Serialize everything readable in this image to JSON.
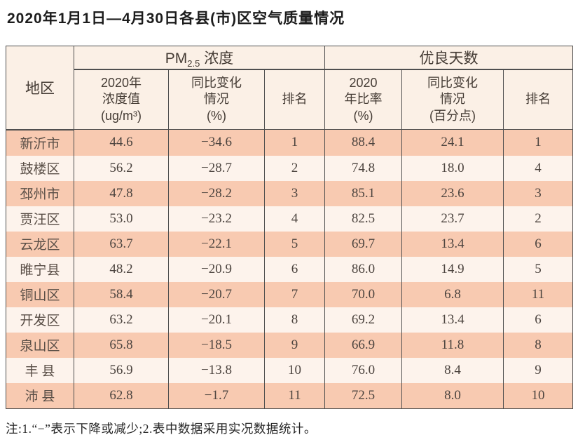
{
  "title": "2020年1月1日—4月30日各县(市)区空气质量情况",
  "note": "注:1.“−”表示下降或减少;2.表中数据采用实况数据统计。",
  "colors": {
    "row_salmon": "#f8cab1",
    "row_light": "#fdf3ec",
    "header_bg": "#fbf0e6",
    "border": "#4f4f4f",
    "title_text": "#1c1c1c",
    "cell_text": "#4c443f"
  },
  "chart_data": {
    "type": "table",
    "title": "2020年1月1日—4月30日各县(市)区空气质量情况",
    "column_groups": [
      {
        "name": "pm25",
        "label_prefix": "PM",
        "label_sub": "2.5",
        "label_suffix": " 浓度",
        "span": 3
      },
      {
        "name": "good_days",
        "label": "优良天数",
        "span": 3
      }
    ],
    "headers": {
      "region": "地区",
      "pm25_value": "2020年\n浓度值\n(ug/m³)",
      "pm25_change": "同比变化\n情况\n(%)",
      "pm25_rank": "排名",
      "good_ratio": "2020\n年比率\n(%)",
      "good_change": "同比变化\n情况\n(百分点)",
      "good_rank": "排名"
    },
    "rows": [
      {
        "region": "新沂市",
        "pm25_value": "44.6",
        "pm25_change": "−34.6",
        "pm25_rank": "1",
        "good_ratio": "88.4",
        "good_change": "24.1",
        "good_rank": "1"
      },
      {
        "region": "鼓楼区",
        "pm25_value": "56.2",
        "pm25_change": "−28.7",
        "pm25_rank": "2",
        "good_ratio": "74.8",
        "good_change": "18.0",
        "good_rank": "4"
      },
      {
        "region": "邳州市",
        "pm25_value": "47.8",
        "pm25_change": "−28.2",
        "pm25_rank": "3",
        "good_ratio": "85.1",
        "good_change": "23.6",
        "good_rank": "3"
      },
      {
        "region": "贾汪区",
        "pm25_value": "53.0",
        "pm25_change": "−23.2",
        "pm25_rank": "4",
        "good_ratio": "82.5",
        "good_change": "23.7",
        "good_rank": "2"
      },
      {
        "region": "云龙区",
        "pm25_value": "63.7",
        "pm25_change": "−22.1",
        "pm25_rank": "5",
        "good_ratio": "69.7",
        "good_change": "13.4",
        "good_rank": "6"
      },
      {
        "region": "睢宁县",
        "pm25_value": "48.2",
        "pm25_change": "−20.9",
        "pm25_rank": "6",
        "good_ratio": "86.0",
        "good_change": "14.9",
        "good_rank": "5"
      },
      {
        "region": "铜山区",
        "pm25_value": "58.4",
        "pm25_change": "−20.7",
        "pm25_rank": "7",
        "good_ratio": "70.0",
        "good_change": "6.8",
        "good_rank": "11"
      },
      {
        "region": "开发区",
        "pm25_value": "63.2",
        "pm25_change": "−20.1",
        "pm25_rank": "8",
        "good_ratio": "69.2",
        "good_change": "13.4",
        "good_rank": "6"
      },
      {
        "region": "泉山区",
        "pm25_value": "65.8",
        "pm25_change": "−18.5",
        "pm25_rank": "9",
        "good_ratio": "66.9",
        "good_change": "11.8",
        "good_rank": "8"
      },
      {
        "region": "丰 县",
        "pm25_value": "56.9",
        "pm25_change": "−13.8",
        "pm25_rank": "10",
        "good_ratio": "76.0",
        "good_change": "8.4",
        "good_rank": "9"
      },
      {
        "region": "沛 县",
        "pm25_value": "62.8",
        "pm25_change": "−1.7",
        "pm25_rank": "11",
        "good_ratio": "72.5",
        "good_change": "8.0",
        "good_rank": "10"
      }
    ]
  }
}
